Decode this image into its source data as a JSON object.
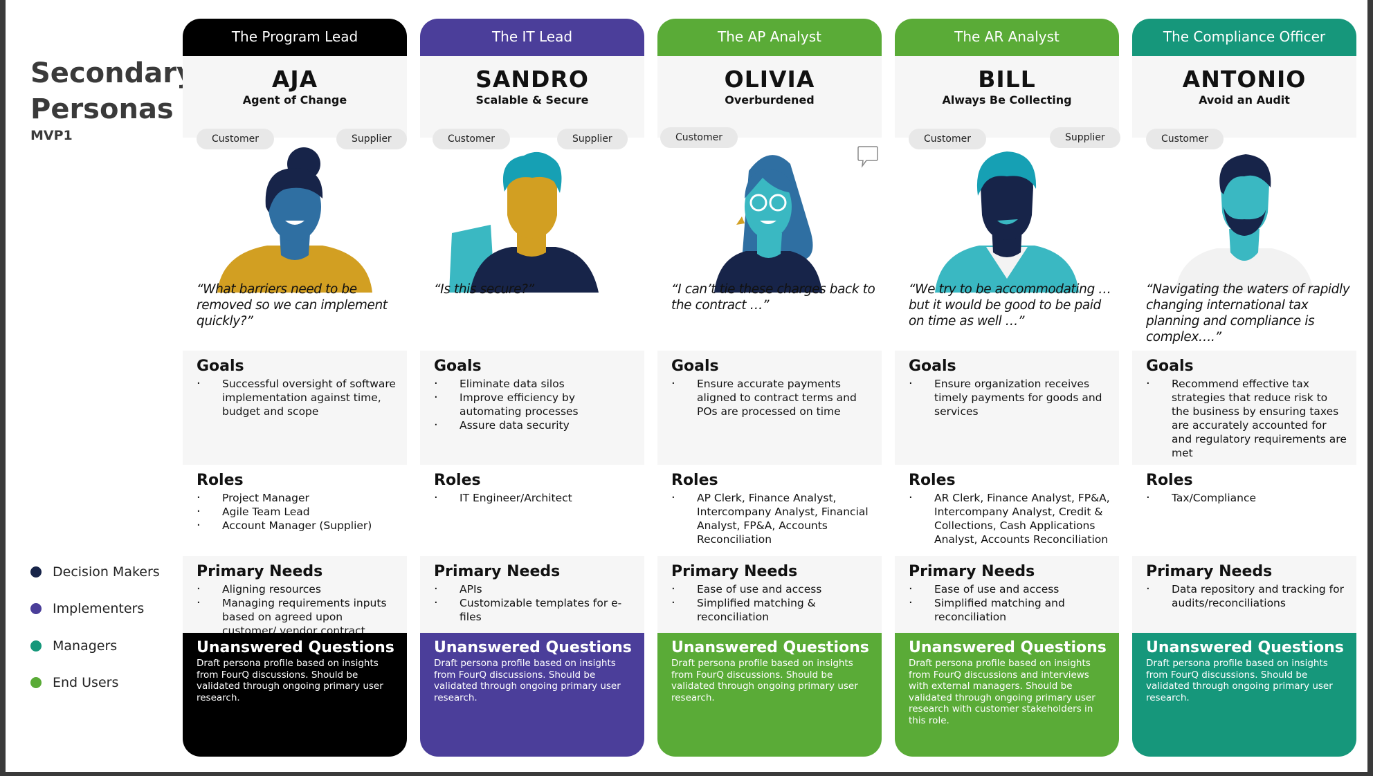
{
  "title_line1": "Secondary",
  "title_line2": "Personas",
  "subtitle": "MVP1",
  "legend": [
    {
      "label": "Decision Makers",
      "color": "#172449"
    },
    {
      "label": "Implementers",
      "color": "#4a3e99"
    },
    {
      "label": "Managers",
      "color": "#15977a"
    },
    {
      "label": "End Users",
      "color": "#5aab37"
    }
  ],
  "colors": {
    "black": "#000000",
    "purple": "#4b3e9a",
    "green": "#5aab37",
    "teal": "#16977b",
    "navy": "#172449",
    "gold": "#d29f22",
    "blue": "#2f6fa2",
    "cyan": "#3ab8c2"
  },
  "labels": {
    "goals": "Goals",
    "roles": "Roles",
    "needs": "Primary Needs",
    "unanswered": "Unanswered Questions"
  },
  "personas": [
    {
      "header": "The Program Lead",
      "name": "AJA",
      "tagline": "Agent of Change",
      "pills": [
        "Customer",
        "Supplier"
      ],
      "avatar": "woman-bun-avatar-icon",
      "quote": "“What barriers need to be removed so we can implement quickly?”",
      "goals": [
        "Successful oversight of software implementation against time, budget and scope"
      ],
      "roles": [
        "Project Manager",
        "Agile Team Lead",
        "Account Manager (Supplier)"
      ],
      "needs": [
        "Aligning resources",
        "Managing requirements inputs based on agreed upon customer/ vendor contract"
      ],
      "unanswered_text": "Draft persona profile based on insights from FourQ discussions. Should be validated through ongoing primary user research."
    },
    {
      "header": "The IT Lead",
      "name": "SANDRO",
      "tagline": "Scalable & Secure",
      "pills": [
        "Customer",
        "Supplier"
      ],
      "avatar": "man-curly-hair-avatar-icon",
      "quote": "“Is this secure?”",
      "goals": [
        "Eliminate data silos",
        "Improve efficiency by automating processes",
        "Assure data security"
      ],
      "roles": [
        "IT Engineer/Architect"
      ],
      "needs": [
        "APIs",
        "Customizable templates for e-files"
      ],
      "unanswered_text": "Draft persona profile based on insights from FourQ discussions. Should be validated through ongoing primary user research."
    },
    {
      "header": "The AP Analyst",
      "name": "OLIVIA",
      "tagline": "Overburdened",
      "pills": [
        "Customer"
      ],
      "avatar": "woman-glasses-avatar-icon",
      "quote": "“I can’t tie these charges back to the contract …”",
      "goals": [
        "Ensure accurate payments aligned to contract terms and POs are processed on time"
      ],
      "roles": [
        "AP Clerk, Finance Analyst, Intercompany Analyst, Financial Analyst, FP&A, Accounts Reconciliation"
      ],
      "needs": [
        "Ease of use and access",
        "Simplified matching & reconciliation"
      ],
      "unanswered_text": "Draft persona profile based on insights from FourQ discussions. Should be validated through ongoing primary user research."
    },
    {
      "header": "The AR Analyst",
      "name": "BILL",
      "tagline": "Always Be Collecting",
      "pills": [
        "Customer",
        "Supplier"
      ],
      "avatar": "man-smiling-avatar-icon",
      "quote": "“We try to be accommodating … but it would be good to be paid on time as well …”",
      "goals": [
        "Ensure organization receives timely payments for goods and services"
      ],
      "roles": [
        "AR Clerk, Finance Analyst, FP&A, Intercompany Analyst, Credit & Collections, Cash Applications Analyst, Accounts Reconciliation"
      ],
      "needs": [
        "Ease of use and access",
        "Simplified matching and reconciliation"
      ],
      "unanswered_text": "Draft persona profile based on insights from FourQ discussions and interviews with external managers. Should be validated through ongoing primary user research with customer stakeholders in this role."
    },
    {
      "header": "The Compliance Officer",
      "name": "ANTONIO",
      "tagline": "Avoid an Audit",
      "pills": [
        "Customer"
      ],
      "avatar": "man-beard-avatar-icon",
      "quote": "“Navigating the waters of rapidly changing international tax planning and compliance is complex….”",
      "goals": [
        "Recommend effective tax strategies that reduce risk  to the business by ensuring taxes are accurately accounted for and regulatory requirements are met"
      ],
      "roles": [
        "Tax/Compliance"
      ],
      "needs": [
        "Data repository and tracking for audits/reconciliations"
      ],
      "unanswered_text": "Draft persona profile based on insights from FourQ discussions. Should be validated through ongoing primary user research."
    }
  ]
}
